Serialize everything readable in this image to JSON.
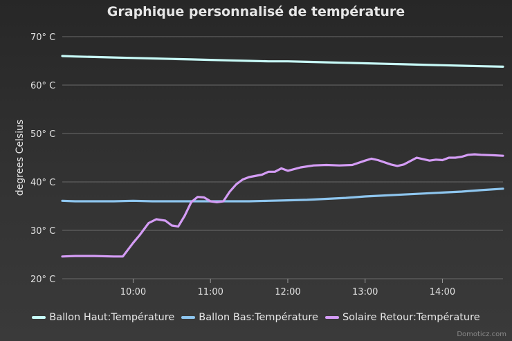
{
  "chart_data": {
    "type": "line",
    "title": "Graphique personnalisé de température",
    "ylabel": "degrees Celsius",
    "xlabel": "",
    "ylim": [
      20,
      70
    ],
    "xlim": [
      "09:05",
      "14:47"
    ],
    "yticks": [
      20,
      30,
      40,
      50,
      60,
      70
    ],
    "yticklabels": [
      "20° C",
      "30° C",
      "40° C",
      "50° C",
      "60° C",
      "70° C"
    ],
    "xticks": [
      "10:00",
      "11:00",
      "12:00",
      "13:00",
      "14:00"
    ],
    "grid": true,
    "legend_position": "bottom",
    "series": [
      {
        "name": "Ballon Haut:Température",
        "color": "#c8fbf8",
        "x": [
          "09:05",
          "09:15",
          "09:30",
          "09:45",
          "10:00",
          "10:15",
          "10:30",
          "10:45",
          "11:00",
          "11:15",
          "11:30",
          "11:45",
          "12:00",
          "12:15",
          "12:30",
          "12:45",
          "13:00",
          "13:15",
          "13:30",
          "13:45",
          "14:00",
          "14:15",
          "14:30",
          "14:47"
        ],
        "values": [
          66.0,
          65.9,
          65.8,
          65.7,
          65.6,
          65.5,
          65.4,
          65.3,
          65.2,
          65.1,
          65.0,
          64.9,
          64.9,
          64.8,
          64.7,
          64.6,
          64.5,
          64.4,
          64.3,
          64.2,
          64.1,
          64.0,
          63.9,
          63.8
        ]
      },
      {
        "name": "Ballon Bas:Température",
        "color": "#8ec6ef",
        "x": [
          "09:05",
          "09:15",
          "09:30",
          "09:45",
          "10:00",
          "10:15",
          "10:30",
          "10:45",
          "11:00",
          "11:15",
          "11:30",
          "11:45",
          "12:00",
          "12:15",
          "12:30",
          "12:45",
          "13:00",
          "13:15",
          "13:30",
          "13:45",
          "14:00",
          "14:15",
          "14:30",
          "14:47"
        ],
        "values": [
          36.1,
          36.0,
          36.0,
          36.0,
          36.1,
          36.0,
          36.0,
          36.0,
          36.0,
          36.0,
          36.0,
          36.1,
          36.2,
          36.3,
          36.5,
          36.7,
          37.0,
          37.2,
          37.4,
          37.6,
          37.8,
          38.0,
          38.3,
          38.6
        ]
      },
      {
        "name": "Solaire Retour:Température",
        "color": "#d49cf5",
        "x": [
          "09:05",
          "09:15",
          "09:30",
          "09:45",
          "09:52",
          "10:00",
          "10:05",
          "10:12",
          "10:18",
          "10:25",
          "10:30",
          "10:35",
          "10:40",
          "10:45",
          "10:50",
          "10:55",
          "11:00",
          "11:05",
          "11:10",
          "11:15",
          "11:20",
          "11:25",
          "11:30",
          "11:40",
          "11:45",
          "11:50",
          "11:55",
          "12:00",
          "12:10",
          "12:20",
          "12:30",
          "12:40",
          "12:50",
          "13:00",
          "13:05",
          "13:10",
          "13:20",
          "13:25",
          "13:30",
          "13:40",
          "13:45",
          "13:50",
          "13:55",
          "14:00",
          "14:05",
          "14:10",
          "14:15",
          "14:20",
          "14:25",
          "14:30",
          "14:40",
          "14:47"
        ],
        "values": [
          24.6,
          24.7,
          24.7,
          24.6,
          24.6,
          27.4,
          29.0,
          31.5,
          32.3,
          32.0,
          31.0,
          30.8,
          33.0,
          35.8,
          36.9,
          36.8,
          36.0,
          35.8,
          36.0,
          38.0,
          39.5,
          40.5,
          41.0,
          41.5,
          42.1,
          42.1,
          42.8,
          42.3,
          43.0,
          43.4,
          43.5,
          43.4,
          43.5,
          44.4,
          44.8,
          44.5,
          43.6,
          43.3,
          43.6,
          45.0,
          44.7,
          44.4,
          44.6,
          44.5,
          45.0,
          45.0,
          45.2,
          45.6,
          45.7,
          45.6,
          45.5,
          45.4
        ]
      }
    ]
  },
  "footer": {
    "credit": "Domoticz.com"
  }
}
